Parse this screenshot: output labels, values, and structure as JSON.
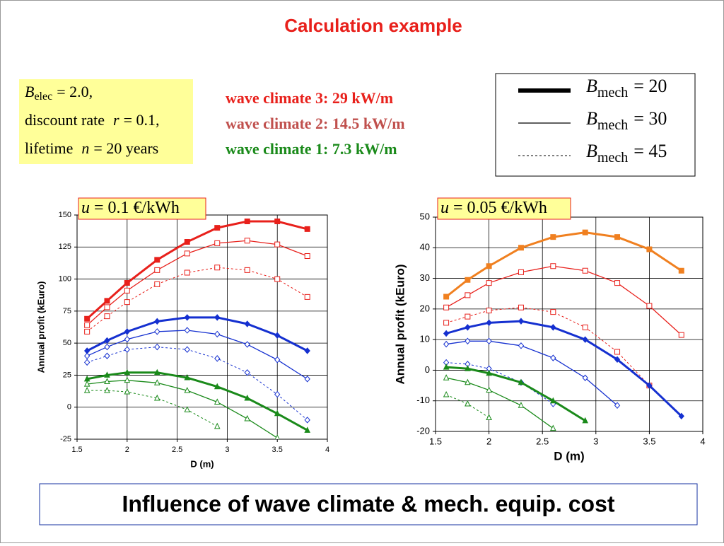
{
  "title": "Calculation example",
  "parameters": [
    {
      "symbol": "B",
      "subscript": "elec",
      "expr": "= 2.0,"
    },
    {
      "prefix": "discount rate",
      "symbol": "r",
      "expr": "= 0.1,"
    },
    {
      "prefix": "lifetime",
      "symbol": "n",
      "expr": "= 20 years"
    }
  ],
  "wave_climates": [
    {
      "text": "wave climate 3:  29 kW/m",
      "color": "#e8201b"
    },
    {
      "text": "wave climate 2:  14.5 kW/m",
      "color": "#c0504d"
    },
    {
      "text": "wave climate 1:  7.3 kW/m",
      "color": "#1a8a1a"
    }
  ],
  "legend_entries": [
    {
      "symbol": "B",
      "subscript": "mech",
      "expr": "= 20",
      "style": "thick"
    },
    {
      "symbol": "B",
      "subscript": "mech",
      "expr": "= 30",
      "style": "solid"
    },
    {
      "symbol": "B",
      "subscript": "mech",
      "expr": "= 45",
      "style": "dotted"
    }
  ],
  "caption": "Influence of wave climate & mech. equip. cost",
  "chart_data": [
    {
      "type": "line",
      "title_symbol": "u",
      "title": "= 0.1 €/kWh",
      "x_label": "D (m)",
      "y_label": "Annual profit (kEuro)",
      "x": [
        1.6,
        1.8,
        2.0,
        2.3,
        2.6,
        2.9,
        3.2,
        3.5,
        3.8
      ],
      "xlim": [
        1.5,
        4
      ],
      "xticks": [
        1.5,
        2,
        2.5,
        3,
        3.5,
        4
      ],
      "ylim": [
        -25,
        150
      ],
      "yticks": [
        -25,
        0,
        25,
        50,
        75,
        100,
        125,
        150
      ],
      "grid": true,
      "series": [
        {
          "color": "#e8201b",
          "style": "thick",
          "marker": "square",
          "filled": true,
          "values": [
            69,
            83,
            97,
            115,
            129,
            140,
            145,
            145,
            139
          ]
        },
        {
          "color": "#e8201b",
          "style": "solid",
          "marker": "square",
          "filled": false,
          "values": [
            64,
            78,
            91,
            107,
            120,
            128,
            130,
            127,
            118
          ]
        },
        {
          "color": "#e8201b",
          "style": "dotted",
          "marker": "square",
          "filled": false,
          "values": [
            59,
            71,
            82,
            96,
            105,
            109,
            107,
            100,
            86
          ]
        },
        {
          "color": "#1530d0",
          "style": "thick",
          "marker": "diamond",
          "filled": true,
          "values": [
            44,
            52,
            59,
            67,
            70,
            70,
            65,
            56,
            44
          ]
        },
        {
          "color": "#1530d0",
          "style": "solid",
          "marker": "diamond",
          "filled": false,
          "values": [
            40,
            47,
            53,
            59,
            60,
            57,
            49,
            37,
            22
          ]
        },
        {
          "color": "#1530d0",
          "style": "dotted",
          "marker": "diamond",
          "filled": false,
          "values": [
            35,
            40,
            45,
            47,
            45,
            38,
            27,
            10,
            -10
          ]
        },
        {
          "color": "#1a8a1a",
          "style": "thick",
          "marker": "triangle",
          "filled": true,
          "values": [
            22,
            25,
            27,
            27,
            23,
            16,
            7,
            -5,
            -18
          ]
        },
        {
          "color": "#1a8a1a",
          "style": "solid",
          "marker": "triangle",
          "filled": false,
          "values": [
            18,
            20,
            21,
            19,
            13,
            4,
            -9,
            -24,
            null
          ]
        },
        {
          "color": "#1a8a1a",
          "style": "dotted",
          "marker": "triangle",
          "filled": false,
          "values": [
            13,
            13,
            12,
            7,
            -2,
            -15,
            null,
            null,
            null
          ]
        }
      ]
    },
    {
      "type": "line",
      "title_symbol": "u",
      "title": "= 0.05 €/kWh",
      "x_label": "D (m)",
      "y_label": "Annual profit (kEuro)",
      "x": [
        1.6,
        1.8,
        2.0,
        2.3,
        2.6,
        2.9,
        3.2,
        3.5,
        3.8
      ],
      "xlim": [
        1.5,
        4
      ],
      "xticks": [
        1.5,
        2,
        2.5,
        3,
        3.5,
        4
      ],
      "ylim": [
        -20,
        50
      ],
      "yticks": [
        -20,
        -10,
        0,
        10,
        20,
        30,
        40,
        50
      ],
      "grid": true,
      "series": [
        {
          "color": "#f08020",
          "style": "thick",
          "marker": "square",
          "filled": true,
          "values": [
            24,
            29.5,
            34,
            40,
            43.5,
            45,
            43.5,
            39.5,
            32.5
          ]
        },
        {
          "color": "#e8201b",
          "style": "solid",
          "marker": "square",
          "filled": false,
          "values": [
            20.5,
            24.5,
            28.5,
            32,
            34,
            32.5,
            28.5,
            21,
            11.5
          ]
        },
        {
          "color": "#e8201b",
          "style": "dotted",
          "marker": "square",
          "filled": false,
          "values": [
            15.5,
            17.5,
            19.5,
            20.5,
            19,
            14,
            6,
            -5,
            null
          ]
        },
        {
          "color": "#1530d0",
          "style": "thick",
          "marker": "diamond",
          "filled": true,
          "values": [
            12,
            14,
            15.5,
            16,
            14,
            10,
            3.5,
            -5,
            -15
          ]
        },
        {
          "color": "#1530d0",
          "style": "solid",
          "marker": "diamond",
          "filled": false,
          "values": [
            8.5,
            9.5,
            9.5,
            8,
            4,
            -2.5,
            -11.5,
            null,
            null
          ]
        },
        {
          "color": "#1530d0",
          "style": "dotted",
          "marker": "diamond",
          "filled": false,
          "values": [
            2.5,
            2,
            0.5,
            -4,
            -11,
            null,
            null,
            null,
            null
          ]
        },
        {
          "color": "#1a8a1a",
          "style": "thick",
          "marker": "triangle",
          "filled": true,
          "values": [
            1,
            0.5,
            -1,
            -4,
            -10,
            -16.5,
            null,
            null,
            null
          ]
        },
        {
          "color": "#1a8a1a",
          "style": "solid",
          "marker": "triangle",
          "filled": false,
          "values": [
            -2.5,
            -4,
            -6.5,
            -11.5,
            -19,
            null,
            null,
            null,
            null
          ]
        },
        {
          "color": "#1a8a1a",
          "style": "dotted",
          "marker": "triangle",
          "filled": false,
          "values": [
            -8,
            -11,
            -15.5,
            null,
            null,
            null,
            null,
            null,
            null
          ]
        }
      ]
    }
  ]
}
